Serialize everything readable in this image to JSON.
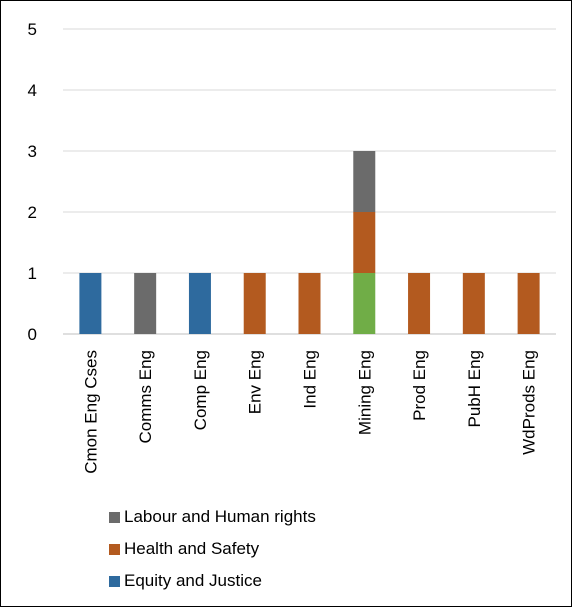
{
  "chart_data": {
    "type": "bar",
    "stacked": true,
    "categories": [
      "Cmon Eng Cses",
      "Comms Eng",
      "Comp Eng",
      "Env Eng",
      "Ind Eng",
      "Mining Eng",
      "Prod Eng",
      "PubH Eng",
      "WdProds Eng"
    ],
    "series": [
      {
        "name": "Equity and Justice",
        "color": "#2e6a9e",
        "values": [
          1,
          0,
          1,
          0,
          0,
          0,
          0,
          0,
          0
        ]
      },
      {
        "name": "",
        "color": "#70ad47",
        "values": [
          0,
          0,
          0,
          0,
          0,
          1,
          0,
          0,
          0
        ]
      },
      {
        "name": "Health and Safety",
        "color": "#b35a1f",
        "values": [
          0,
          0,
          0,
          1,
          1,
          1,
          1,
          1,
          1
        ]
      },
      {
        "name": "Labour and Human rights",
        "color": "#6b6b6b",
        "values": [
          0,
          1,
          0,
          0,
          0,
          1,
          0,
          0,
          0
        ]
      }
    ],
    "ylim": [
      0,
      5
    ],
    "yticks": [
      "0",
      "1",
      "2",
      "3",
      "4",
      "5"
    ],
    "grid": true,
    "legend_position": "bottom",
    "legend": [
      "Labour and Human rights",
      "Health and Safety",
      "Equity and Justice"
    ],
    "title": "",
    "xlabel": "",
    "ylabel": ""
  }
}
